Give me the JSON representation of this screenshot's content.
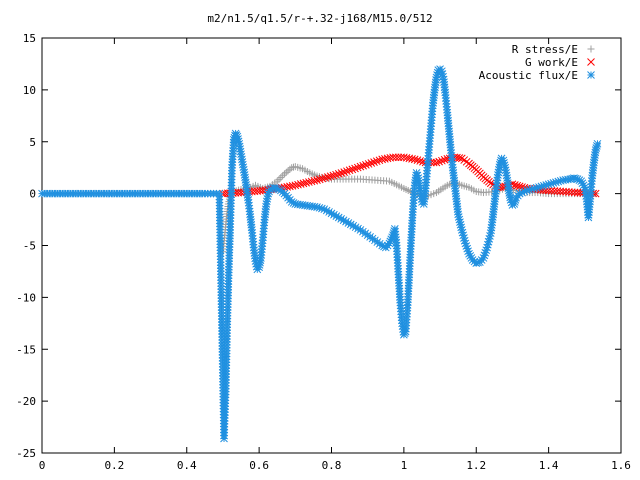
{
  "chart_data": {
    "type": "scatter",
    "title": "m2/n1.5/q1.5/r-+.32-j168/M15.0/512",
    "xlabel": "",
    "ylabel": "",
    "xlim": [
      0,
      1.6
    ],
    "ylim": [
      -25,
      15
    ],
    "x_ticks": [
      "0",
      "0.2",
      "0.4",
      "0.6",
      "0.8",
      "1",
      "1.2",
      "1.4",
      "1.6"
    ],
    "y_ticks": [
      "15",
      "10",
      "5",
      "0",
      "-5",
      "-10",
      "-15",
      "-20",
      "-25"
    ],
    "grid": false,
    "legend_position": "top-right",
    "series": [
      {
        "name": "R stress/E",
        "marker": "+",
        "color": "#a0a0a0",
        "points": [
          [
            0.5,
            -5.6
          ],
          [
            0.505,
            -4.0
          ],
          [
            0.51,
            -2.2
          ],
          [
            0.515,
            -1.0
          ],
          [
            0.52,
            -0.3
          ],
          [
            0.53,
            0.2
          ],
          [
            0.55,
            0.4
          ],
          [
            0.57,
            0.5
          ],
          [
            0.59,
            0.8
          ],
          [
            0.61,
            0.5
          ],
          [
            0.63,
            0.7
          ],
          [
            0.65,
            1.2
          ],
          [
            0.67,
            1.9
          ],
          [
            0.69,
            2.5
          ],
          [
            0.7,
            2.6
          ],
          [
            0.72,
            2.4
          ],
          [
            0.74,
            2.0
          ],
          [
            0.76,
            1.7
          ],
          [
            0.78,
            1.5
          ],
          [
            0.8,
            1.4
          ],
          [
            0.84,
            1.4
          ],
          [
            0.88,
            1.4
          ],
          [
            0.92,
            1.3
          ],
          [
            0.96,
            1.2
          ],
          [
            1.0,
            0.5
          ],
          [
            1.03,
            0.0
          ],
          [
            1.06,
            -0.3
          ],
          [
            1.09,
            0.1
          ],
          [
            1.12,
            0.8
          ],
          [
            1.14,
            1.1
          ],
          [
            1.16,
            0.8
          ],
          [
            1.18,
            0.6
          ],
          [
            1.2,
            0.2
          ],
          [
            1.22,
            0.1
          ],
          [
            1.25,
            0.2
          ],
          [
            1.28,
            0.5
          ],
          [
            1.31,
            0.3
          ],
          [
            1.34,
            0.1
          ],
          [
            1.37,
            0.1
          ],
          [
            1.4,
            0.0
          ],
          [
            1.44,
            0.0
          ],
          [
            1.48,
            0.0
          ],
          [
            1.51,
            0.0
          ],
          [
            1.53,
            0.0
          ]
        ]
      },
      {
        "name": "G work/E",
        "marker": "x",
        "color": "#ff0000",
        "points": [
          [
            0.5,
            0.0
          ],
          [
            0.52,
            0.05
          ],
          [
            0.55,
            0.1
          ],
          [
            0.58,
            0.2
          ],
          [
            0.61,
            0.3
          ],
          [
            0.64,
            0.45
          ],
          [
            0.67,
            0.6
          ],
          [
            0.7,
            0.8
          ],
          [
            0.73,
            1.05
          ],
          [
            0.76,
            1.3
          ],
          [
            0.79,
            1.6
          ],
          [
            0.82,
            1.9
          ],
          [
            0.85,
            2.25
          ],
          [
            0.88,
            2.6
          ],
          [
            0.91,
            2.95
          ],
          [
            0.94,
            3.3
          ],
          [
            0.97,
            3.5
          ],
          [
            1.0,
            3.5
          ],
          [
            1.03,
            3.3
          ],
          [
            1.06,
            3.0
          ],
          [
            1.09,
            3.0
          ],
          [
            1.12,
            3.35
          ],
          [
            1.14,
            3.5
          ],
          [
            1.16,
            3.4
          ],
          [
            1.18,
            2.9
          ],
          [
            1.2,
            2.3
          ],
          [
            1.22,
            1.6
          ],
          [
            1.24,
            1.0
          ],
          [
            1.26,
            0.6
          ],
          [
            1.28,
            0.7
          ],
          [
            1.3,
            0.9
          ],
          [
            1.32,
            0.7
          ],
          [
            1.34,
            0.5
          ],
          [
            1.37,
            0.4
          ],
          [
            1.4,
            0.3
          ],
          [
            1.44,
            0.2
          ],
          [
            1.48,
            0.1
          ],
          [
            1.51,
            0.05
          ],
          [
            1.53,
            0.0
          ]
        ]
      },
      {
        "name": "Acoustic flux/E",
        "marker": "*",
        "color": "#2090e0",
        "points": [
          [
            0.0,
            0.0
          ],
          [
            0.05,
            0.0
          ],
          [
            0.1,
            0.0
          ],
          [
            0.15,
            0.0
          ],
          [
            0.2,
            0.0
          ],
          [
            0.25,
            0.0
          ],
          [
            0.3,
            0.0
          ],
          [
            0.35,
            0.0
          ],
          [
            0.4,
            0.0
          ],
          [
            0.45,
            0.0
          ],
          [
            0.49,
            0.0
          ],
          [
            0.503,
            -23.6
          ],
          [
            0.508,
            -18.8
          ],
          [
            0.512,
            -12.6
          ],
          [
            0.516,
            -7.6
          ],
          [
            0.52,
            -3.5
          ],
          [
            0.525,
            2.5
          ],
          [
            0.53,
            5.2
          ],
          [
            0.535,
            5.8
          ],
          [
            0.54,
            5.5
          ],
          [
            0.545,
            4.8
          ],
          [
            0.55,
            3.8
          ],
          [
            0.555,
            2.8
          ],
          [
            0.56,
            1.8
          ],
          [
            0.565,
            0.6
          ],
          [
            0.57,
            -0.6
          ],
          [
            0.575,
            -2.0
          ],
          [
            0.58,
            -3.5
          ],
          [
            0.585,
            -5.2
          ],
          [
            0.59,
            -6.5
          ],
          [
            0.595,
            -7.3
          ],
          [
            0.6,
            -7.1
          ],
          [
            0.605,
            -6.2
          ],
          [
            0.61,
            -4.5
          ],
          [
            0.615,
            -2.5
          ],
          [
            0.62,
            -1.0
          ],
          [
            0.625,
            0.0
          ],
          [
            0.63,
            0.4
          ],
          [
            0.64,
            0.55
          ],
          [
            0.65,
            0.5
          ],
          [
            0.66,
            0.3
          ],
          [
            0.67,
            0.0
          ],
          [
            0.68,
            -0.4
          ],
          [
            0.69,
            -0.8
          ],
          [
            0.7,
            -1.0
          ],
          [
            0.72,
            -1.1
          ],
          [
            0.74,
            -1.2
          ],
          [
            0.76,
            -1.3
          ],
          [
            0.78,
            -1.5
          ],
          [
            0.8,
            -1.9
          ],
          [
            0.82,
            -2.3
          ],
          [
            0.84,
            -2.7
          ],
          [
            0.86,
            -3.1
          ],
          [
            0.88,
            -3.5
          ],
          [
            0.9,
            -4.0
          ],
          [
            0.92,
            -4.5
          ],
          [
            0.94,
            -5.0
          ],
          [
            0.95,
            -5.2
          ],
          [
            0.96,
            -4.8
          ],
          [
            0.97,
            -4.0
          ],
          [
            0.975,
            -3.4
          ],
          [
            0.98,
            -5.0
          ],
          [
            0.985,
            -7.8
          ],
          [
            0.99,
            -10.5
          ],
          [
            0.995,
            -12.5
          ],
          [
            1.0,
            -13.6
          ],
          [
            1.005,
            -13.3
          ],
          [
            1.01,
            -11.0
          ],
          [
            1.015,
            -7.8
          ],
          [
            1.02,
            -4.5
          ],
          [
            1.025,
            -1.5
          ],
          [
            1.03,
            0.8
          ],
          [
            1.035,
            2.0
          ],
          [
            1.04,
            1.5
          ],
          [
            1.045,
            0.3
          ],
          [
            1.05,
            -0.8
          ],
          [
            1.055,
            -1.0
          ],
          [
            1.06,
            0.5
          ],
          [
            1.065,
            2.5
          ],
          [
            1.07,
            4.5
          ],
          [
            1.075,
            6.5
          ],
          [
            1.08,
            8.5
          ],
          [
            1.085,
            10.0
          ],
          [
            1.09,
            11.2
          ],
          [
            1.095,
            11.9
          ],
          [
            1.1,
            12.0
          ],
          [
            1.105,
            11.8
          ],
          [
            1.11,
            11.0
          ],
          [
            1.115,
            9.5
          ],
          [
            1.12,
            7.8
          ],
          [
            1.125,
            6.0
          ],
          [
            1.13,
            4.2
          ],
          [
            1.135,
            2.5
          ],
          [
            1.14,
            1.0
          ],
          [
            1.145,
            -0.5
          ],
          [
            1.15,
            -2.0
          ],
          [
            1.16,
            -3.5
          ],
          [
            1.17,
            -4.8
          ],
          [
            1.18,
            -5.8
          ],
          [
            1.19,
            -6.4
          ],
          [
            1.2,
            -6.7
          ],
          [
            1.21,
            -6.6
          ],
          [
            1.22,
            -6.2
          ],
          [
            1.23,
            -5.2
          ],
          [
            1.24,
            -3.8
          ],
          [
            1.245,
            -2.5
          ],
          [
            1.25,
            -1.0
          ],
          [
            1.255,
            0.5
          ],
          [
            1.26,
            1.8
          ],
          [
            1.265,
            2.8
          ],
          [
            1.27,
            3.4
          ],
          [
            1.275,
            3.2
          ],
          [
            1.28,
            2.5
          ],
          [
            1.285,
            1.5
          ],
          [
            1.29,
            0.3
          ],
          [
            1.295,
            -0.6
          ],
          [
            1.3,
            -1.1
          ],
          [
            1.305,
            -1.0
          ],
          [
            1.31,
            -0.4
          ],
          [
            1.32,
            0.0
          ],
          [
            1.34,
            0.3
          ],
          [
            1.36,
            0.5
          ],
          [
            1.38,
            0.7
          ],
          [
            1.4,
            0.9
          ],
          [
            1.42,
            1.1
          ],
          [
            1.44,
            1.3
          ],
          [
            1.46,
            1.4
          ],
          [
            1.47,
            1.5
          ],
          [
            1.48,
            1.4
          ],
          [
            1.49,
            1.2
          ],
          [
            1.5,
            0.6
          ],
          [
            1.505,
            -0.5
          ],
          [
            1.51,
            -2.3
          ],
          [
            1.515,
            -0.5
          ],
          [
            1.52,
            1.5
          ],
          [
            1.525,
            3.0
          ],
          [
            1.53,
            4.2
          ],
          [
            1.535,
            4.8
          ]
        ]
      }
    ]
  }
}
